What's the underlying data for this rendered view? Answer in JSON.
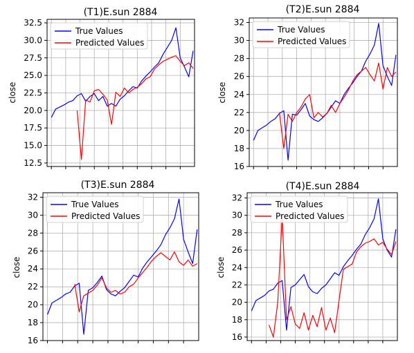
{
  "chart_data": [
    {
      "type": "line",
      "title": "(T1)E.sun 2884",
      "xlabel": "",
      "ylabel": "close",
      "ylim": [
        12,
        33
      ],
      "yticks": [
        12.5,
        15.0,
        17.5,
        20.0,
        22.5,
        25.0,
        27.5,
        30.0,
        32.5
      ],
      "ytick_labels": [
        "12.5",
        "15.0",
        "17.5",
        "20.0",
        "22.5",
        "25.0",
        "27.5",
        "30.0",
        "32.5"
      ],
      "x_count": 10,
      "grid": true,
      "legend_position": "top-left",
      "series": [
        {
          "name": "True Values",
          "color": "#0000ff",
          "x": [
            0,
            0.3,
            0.6,
            0.9,
            1.2,
            1.5,
            1.8,
            2.1,
            2.4,
            2.7,
            3.0,
            3.3,
            3.6,
            3.9,
            4.2,
            4.5,
            4.8,
            5.1,
            5.4,
            5.7,
            6.0,
            6.3,
            6.6,
            6.9,
            7.2,
            7.5,
            7.8,
            8.1,
            8.4,
            8.7,
            9.0,
            9.3,
            9.6,
            9.9
          ],
          "values": [
            19.0,
            20.2,
            20.5,
            20.8,
            21.2,
            21.4,
            22.1,
            22.4,
            21.3,
            22.0,
            22.4,
            21.4,
            22.0,
            20.6,
            21.0,
            20.6,
            21.6,
            22.1,
            22.8,
            23.4,
            23.2,
            24.2,
            24.9,
            25.5,
            26.2,
            26.8,
            28.0,
            29.0,
            30.0,
            31.8,
            27.5,
            26.2,
            24.8,
            28.5
          ]
        },
        {
          "name": "Predicted Values",
          "color": "#ff0000",
          "x": [
            1.8,
            2.1,
            2.4,
            2.7,
            3.0,
            3.3,
            3.6,
            3.9,
            4.2,
            4.5,
            4.8,
            5.1,
            5.4,
            5.7,
            6.0,
            6.3,
            6.6,
            6.9,
            7.2,
            7.5,
            7.8,
            8.1,
            8.4,
            8.7,
            9.0,
            9.3,
            9.6,
            9.9
          ],
          "values": [
            20.0,
            13.0,
            21.5,
            21.2,
            22.8,
            23.0,
            22.3,
            21.5,
            18.0,
            22.6,
            22.0,
            23.2,
            22.5,
            23.0,
            23.3,
            23.8,
            24.5,
            24.8,
            25.9,
            26.5,
            27.0,
            27.3,
            27.6,
            27.8,
            27.0,
            26.4,
            26.8,
            26.0
          ]
        }
      ]
    },
    {
      "type": "line",
      "title": "(T2)E.sun 2884",
      "xlabel": "",
      "ylabel": "close",
      "ylim": [
        16,
        32.5
      ],
      "yticks": [
        16,
        18,
        20,
        22,
        24,
        26,
        28,
        30,
        32
      ],
      "ytick_labels": [
        "16",
        "18",
        "20",
        "22",
        "24",
        "26",
        "28",
        "30",
        "32"
      ],
      "x_count": 10,
      "grid": true,
      "legend_position": "top-left",
      "series": [
        {
          "name": "True Values",
          "color": "#0000ff",
          "x": [
            0,
            0.3,
            0.6,
            0.9,
            1.2,
            1.5,
            1.8,
            2.1,
            2.4,
            2.7,
            3.0,
            3.3,
            3.6,
            3.9,
            4.2,
            4.5,
            4.8,
            5.1,
            5.4,
            5.7,
            6.0,
            6.3,
            6.6,
            6.9,
            7.2,
            7.5,
            7.8,
            8.1,
            8.4,
            8.7,
            9.0,
            9.3,
            9.6,
            9.9
          ],
          "values": [
            18.9,
            20.0,
            20.3,
            20.6,
            21.0,
            21.3,
            21.9,
            22.2,
            16.7,
            21.8,
            21.7,
            22.3,
            23.0,
            21.6,
            21.2,
            21.0,
            21.4,
            21.9,
            22.6,
            23.3,
            23.0,
            24.0,
            24.7,
            25.3,
            26.0,
            26.6,
            27.7,
            28.5,
            29.5,
            31.9,
            27.2,
            26.0,
            25.0,
            28.4
          ]
        },
        {
          "name": "Predicted Values",
          "color": "#ff0000",
          "x": [
            1.8,
            2.1,
            2.4,
            2.7,
            3.0,
            3.3,
            3.6,
            3.9,
            4.2,
            4.5,
            4.8,
            5.1,
            5.4,
            5.7,
            6.0,
            6.3,
            6.6,
            6.9,
            7.2,
            7.5,
            7.8,
            8.1,
            8.4,
            8.7,
            9.0,
            9.3,
            9.6,
            9.9
          ],
          "values": [
            22.0,
            18.0,
            21.8,
            21.0,
            22.0,
            22.6,
            23.5,
            24.0,
            21.4,
            22.0,
            21.5,
            21.9,
            22.8,
            22.0,
            23.0,
            23.7,
            24.5,
            25.5,
            26.2,
            26.6,
            27.0,
            26.2,
            25.5,
            27.5,
            24.6,
            27.0,
            26.0,
            26.5
          ]
        }
      ]
    },
    {
      "type": "line",
      "title": "(T3)E.sun 2884",
      "xlabel": "",
      "ylabel": "close",
      "ylim": [
        16,
        32.5
      ],
      "yticks": [
        16,
        18,
        20,
        22,
        24,
        26,
        28,
        30,
        32
      ],
      "ytick_labels": [
        "16",
        "18",
        "20",
        "22",
        "24",
        "26",
        "28",
        "30",
        "32"
      ],
      "x_count": 10,
      "grid": true,
      "legend_position": "top-left",
      "series": [
        {
          "name": "True Values",
          "color": "#0000ff",
          "x": [
            0,
            0.3,
            0.6,
            0.9,
            1.2,
            1.5,
            1.8,
            2.1,
            2.4,
            2.7,
            3.0,
            3.3,
            3.6,
            3.9,
            4.2,
            4.5,
            4.8,
            5.1,
            5.4,
            5.7,
            6.0,
            6.3,
            6.6,
            6.9,
            7.2,
            7.5,
            7.8,
            8.1,
            8.4,
            8.7,
            9.0,
            9.3,
            9.6,
            9.9
          ],
          "values": [
            18.9,
            20.2,
            20.5,
            20.8,
            21.2,
            21.4,
            22.1,
            22.4,
            16.7,
            21.6,
            21.9,
            22.5,
            23.2,
            21.7,
            21.2,
            21.0,
            21.5,
            21.9,
            22.6,
            23.3,
            23.1,
            24.1,
            24.8,
            25.4,
            26.0,
            26.7,
            27.8,
            28.6,
            29.6,
            31.8,
            27.3,
            25.9,
            24.6,
            28.4
          ]
        },
        {
          "name": "Predicted Values",
          "color": "#ff0000",
          "x": [
            1.8,
            2.1,
            2.4,
            2.7,
            3.0,
            3.3,
            3.6,
            3.9,
            4.2,
            4.5,
            4.8,
            5.1,
            5.4,
            5.7,
            6.0,
            6.3,
            6.6,
            6.9,
            7.2,
            7.5,
            7.8,
            8.1,
            8.4,
            8.7,
            9.0,
            9.3,
            9.6,
            9.9
          ],
          "values": [
            22.3,
            19.2,
            21.0,
            21.3,
            21.6,
            22.2,
            23.0,
            21.9,
            21.4,
            21.6,
            21.2,
            21.4,
            22.0,
            22.3,
            23.0,
            23.6,
            24.2,
            24.9,
            25.4,
            25.8,
            25.4,
            25.0,
            25.9,
            24.8,
            24.4,
            25.0,
            24.3,
            24.6
          ]
        }
      ]
    },
    {
      "type": "line",
      "title": "(T4)E.sun 2884",
      "xlabel": "",
      "ylabel": "close",
      "ylim": [
        15.6,
        32.6
      ],
      "yticks": [
        16,
        18,
        20,
        22,
        24,
        26,
        28,
        30,
        32
      ],
      "ytick_labels": [
        "16",
        "18",
        "20",
        "22",
        "24",
        "26",
        "28",
        "30",
        "32"
      ],
      "x_count": 10,
      "grid": true,
      "legend_position": "top-left",
      "series": [
        {
          "name": "True Values",
          "color": "#0000ff",
          "x": [
            0,
            0.3,
            0.6,
            0.9,
            1.2,
            1.5,
            1.8,
            2.1,
            2.4,
            2.7,
            3.0,
            3.3,
            3.6,
            3.9,
            4.2,
            4.5,
            4.8,
            5.1,
            5.4,
            5.7,
            6.0,
            6.3,
            6.6,
            6.9,
            7.2,
            7.5,
            7.8,
            8.1,
            8.4,
            8.7,
            9.0,
            9.3,
            9.6,
            9.9
          ],
          "values": [
            19.0,
            20.2,
            20.5,
            20.8,
            21.3,
            21.5,
            22.2,
            22.5,
            16.8,
            21.7,
            22.0,
            22.6,
            23.2,
            21.8,
            21.2,
            21.0,
            21.6,
            22.0,
            22.7,
            23.4,
            23.1,
            24.1,
            24.8,
            25.4,
            26.1,
            26.7,
            27.8,
            28.6,
            29.6,
            31.9,
            27.3,
            26.0,
            25.2,
            28.4
          ]
        },
        {
          "name": "Predicted Values",
          "color": "#ff0000",
          "x": [
            1.2,
            1.5,
            1.8,
            2.1,
            2.4,
            2.7,
            3.0,
            3.3,
            3.6,
            3.9,
            4.2,
            4.5,
            4.8,
            5.1,
            5.4,
            5.7,
            6.0,
            6.3,
            6.6,
            6.9,
            7.2,
            7.5,
            7.8,
            8.1,
            8.4,
            8.7,
            9.0,
            9.3,
            9.6,
            9.9
          ],
          "values": [
            17.4,
            16.0,
            20.0,
            29.9,
            18.0,
            19.5,
            17.5,
            17.0,
            18.8,
            16.8,
            18.5,
            17.2,
            19.4,
            16.8,
            18.2,
            16.5,
            20.2,
            23.8,
            24.1,
            24.4,
            25.8,
            26.4,
            26.8,
            27.0,
            27.3,
            26.6,
            26.9,
            26.1,
            25.5,
            27.0
          ]
        }
      ]
    }
  ]
}
